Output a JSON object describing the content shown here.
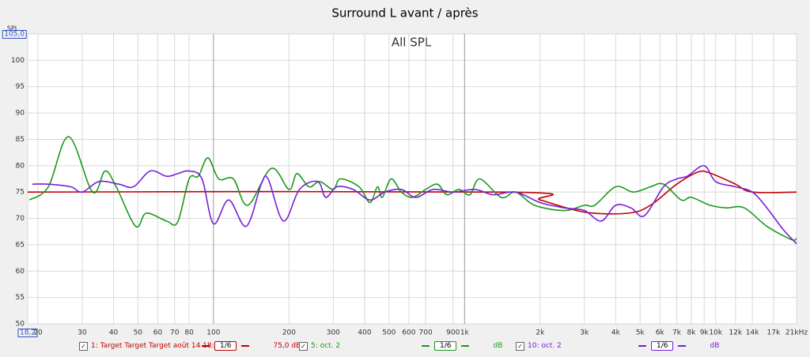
{
  "chart_data": {
    "type": "line",
    "title": "Surround L avant / après",
    "subtitle": "All SPL",
    "y_label": "SPL",
    "log_x": true,
    "grid": true,
    "xlim": [
      18.2,
      21000
    ],
    "ylim": [
      50,
      105
    ],
    "yticks": [
      50,
      55,
      60,
      65,
      70,
      75,
      80,
      85,
      90,
      95,
      100,
      {
        "value": 105,
        "label": "105,0"
      }
    ],
    "xticks": [
      {
        "value": 18.2,
        "label": "18,2"
      },
      20,
      30,
      40,
      50,
      60,
      70,
      80,
      100,
      200,
      300,
      400,
      500,
      600,
      700,
      900,
      {
        "value": 1000,
        "label": "1k"
      },
      {
        "value": 2000,
        "label": "2k"
      },
      {
        "value": 3000,
        "label": "3k"
      },
      {
        "value": 4000,
        "label": "4k"
      },
      {
        "value": 5000,
        "label": "5k"
      },
      {
        "value": 6000,
        "label": "6k"
      },
      {
        "value": 7000,
        "label": "7k"
      },
      {
        "value": 8000,
        "label": "8k"
      },
      {
        "value": 9000,
        "label": "9k"
      },
      {
        "value": 10000,
        "label": "10k"
      },
      {
        "value": 12000,
        "label": "12k"
      },
      {
        "value": 14000,
        "label": "14k"
      },
      {
        "value": 17000,
        "label": "17k"
      },
      {
        "value": 21000,
        "label": "21kHz"
      }
    ],
    "series": [
      {
        "name": "1: Target Target Target août 14 18:",
        "color": "#c00000",
        "smoothing": "1/6",
        "level": "75,0 dB",
        "x": [
          18.2,
          1500,
          2000,
          3000,
          4500,
          5500,
          7000,
          8500,
          9500,
          12000,
          14000,
          21000
        ],
        "values": [
          75,
          75,
          73.5,
          71.2,
          71,
          72.5,
          76.5,
          78.8,
          78.6,
          76.5,
          75,
          75
        ]
      },
      {
        "name": "5: oct. 2",
        "color": "#1a9a1a",
        "smoothing": "1/6",
        "level": "dB",
        "x": [
          18.5,
          22,
          26.5,
          33,
          37,
          41,
          49,
          54,
          65,
          72,
          80,
          87,
          95,
          105,
          120,
          137,
          170,
          200,
          215,
          240,
          265,
          300,
          320,
          380,
          420,
          450,
          470,
          510,
          560,
          620,
          700,
          780,
          850,
          950,
          1050,
          1150,
          1400,
          1600,
          1900,
          2500,
          3000,
          3300,
          4000,
          4700,
          5500,
          6200,
          7300,
          8000,
          9500,
          11000,
          13000,
          16000,
          20000,
          21000
        ],
        "values": [
          73.5,
          76,
          85.5,
          75,
          79,
          76,
          68.5,
          71,
          69.5,
          69.3,
          77.5,
          78,
          81.5,
          77.5,
          77.5,
          72.5,
          79.5,
          75.5,
          78.5,
          76,
          77,
          75.5,
          77.5,
          76,
          73,
          76,
          74,
          77.5,
          75,
          74,
          75.5,
          76.5,
          74.5,
          75.5,
          74.5,
          77.5,
          74,
          75,
          72.5,
          71.5,
          72.5,
          72.5,
          76,
          75,
          76,
          76.5,
          73.5,
          74,
          72.5,
          72,
          72,
          68.5,
          66,
          66.2
        ]
      },
      {
        "name": "10: oct. 2",
        "color": "#7a1fd8",
        "smoothing": "1/6",
        "level": "dB",
        "x": [
          19,
          22,
          27,
          30,
          35,
          42,
          48,
          56,
          65,
          72,
          80,
          90,
          100,
          115,
          135,
          155,
          165,
          190,
          220,
          260,
          280,
          310,
          360,
          420,
          480,
          560,
          640,
          750,
          900,
          1100,
          1300,
          1600,
          2000,
          2500,
          3000,
          3500,
          4000,
          4600,
          5200,
          6200,
          7000,
          7700,
          9000,
          10000,
          12000,
          14000,
          16000,
          18500,
          21000
        ],
        "values": [
          76.5,
          76.5,
          76,
          75,
          77,
          76.5,
          76,
          79,
          78,
          78.5,
          79,
          77.5,
          69,
          73.5,
          68.5,
          76.5,
          77.5,
          69.5,
          75.5,
          77,
          74,
          76,
          75.5,
          73.5,
          75,
          75.5,
          74,
          75.5,
          75,
          75.5,
          74.5,
          75,
          73,
          72,
          71.5,
          69.5,
          72.5,
          72,
          70.5,
          76,
          77.5,
          78,
          80,
          77,
          76,
          75,
          72,
          68,
          65.2
        ]
      }
    ]
  }
}
